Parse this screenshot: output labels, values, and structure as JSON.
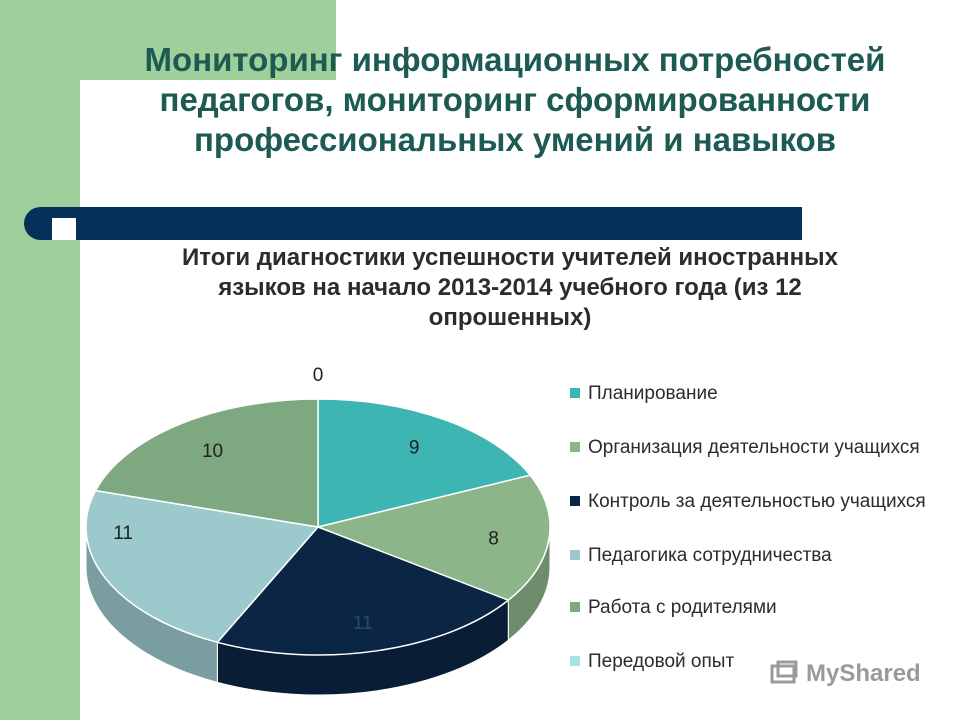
{
  "slide": {
    "title": "Мониторинг информационных потребностей педагогов, мониторинг сформированности профессиональных умений и навыков",
    "watermark": "MyShared"
  },
  "chart_data": {
    "type": "pie",
    "title": "Итоги диагностики успешности учителей иностранных языков на начало 2013-2014 учебного года (из 12 опрошенных)",
    "categories": [
      "Планирование",
      "Организация деятельности учащихся",
      "Контроль за деятельностью учащихся",
      "Педагогика сотрудничества",
      "Работа с родителями",
      "Передовой опыт"
    ],
    "values": [
      9,
      8,
      11,
      11,
      10,
      0
    ],
    "colors": [
      "#3cb5b3",
      "#8db58a",
      "#0b2545",
      "#9cc9cc",
      "#7ea87f",
      "#9fe0e0"
    ],
    "legend": "right"
  }
}
